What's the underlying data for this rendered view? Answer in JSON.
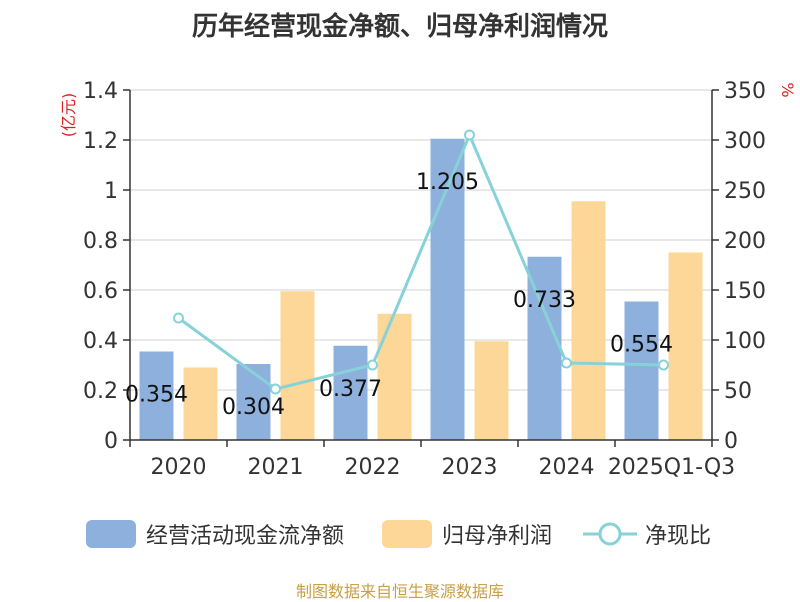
{
  "title": "历年经营现金净额、归母净利润情况",
  "source": "制图数据来自恒生聚源数据库",
  "colors": {
    "cash": "#8eb0dc",
    "profit": "#fdd797",
    "ratio": "#87d2d8"
  },
  "chart_data": {
    "type": "bar",
    "categories": [
      "2020",
      "2021",
      "2022",
      "2023",
      "2024",
      "2025Q1-Q3"
    ],
    "series": [
      {
        "name": "经营活动现金流净额",
        "type": "bar",
        "axis": "left",
        "values": [
          0.354,
          0.304,
          0.377,
          1.205,
          0.733,
          0.554
        ],
        "labels": [
          "0.354",
          "0.304",
          "0.377",
          "1.205",
          "0.733",
          "0.554"
        ]
      },
      {
        "name": "归母净利润",
        "type": "bar",
        "axis": "left",
        "values": [
          0.29,
          0.595,
          0.505,
          0.395,
          0.955,
          0.75
        ]
      },
      {
        "name": "净现比",
        "type": "line",
        "axis": "right",
        "values": [
          122,
          51,
          75,
          305,
          77,
          75
        ]
      }
    ],
    "y_left": {
      "label": "(亿元)",
      "min": 0,
      "max": 1.4,
      "ticks": [
        0,
        0.2,
        0.4,
        0.6,
        0.8,
        1,
        1.2,
        1.4
      ],
      "tick_labels": [
        "0",
        "0.2",
        "0.4",
        "0.6",
        "0.8",
        "1",
        "1.2",
        "1.4"
      ]
    },
    "y_right": {
      "label": "%",
      "min": 0,
      "max": 350,
      "ticks": [
        0,
        50,
        100,
        150,
        200,
        250,
        300,
        350
      ],
      "tick_labels": [
        "0",
        "50",
        "100",
        "150",
        "200",
        "250",
        "300",
        "350"
      ]
    },
    "grid": true,
    "legend": "bottom"
  }
}
